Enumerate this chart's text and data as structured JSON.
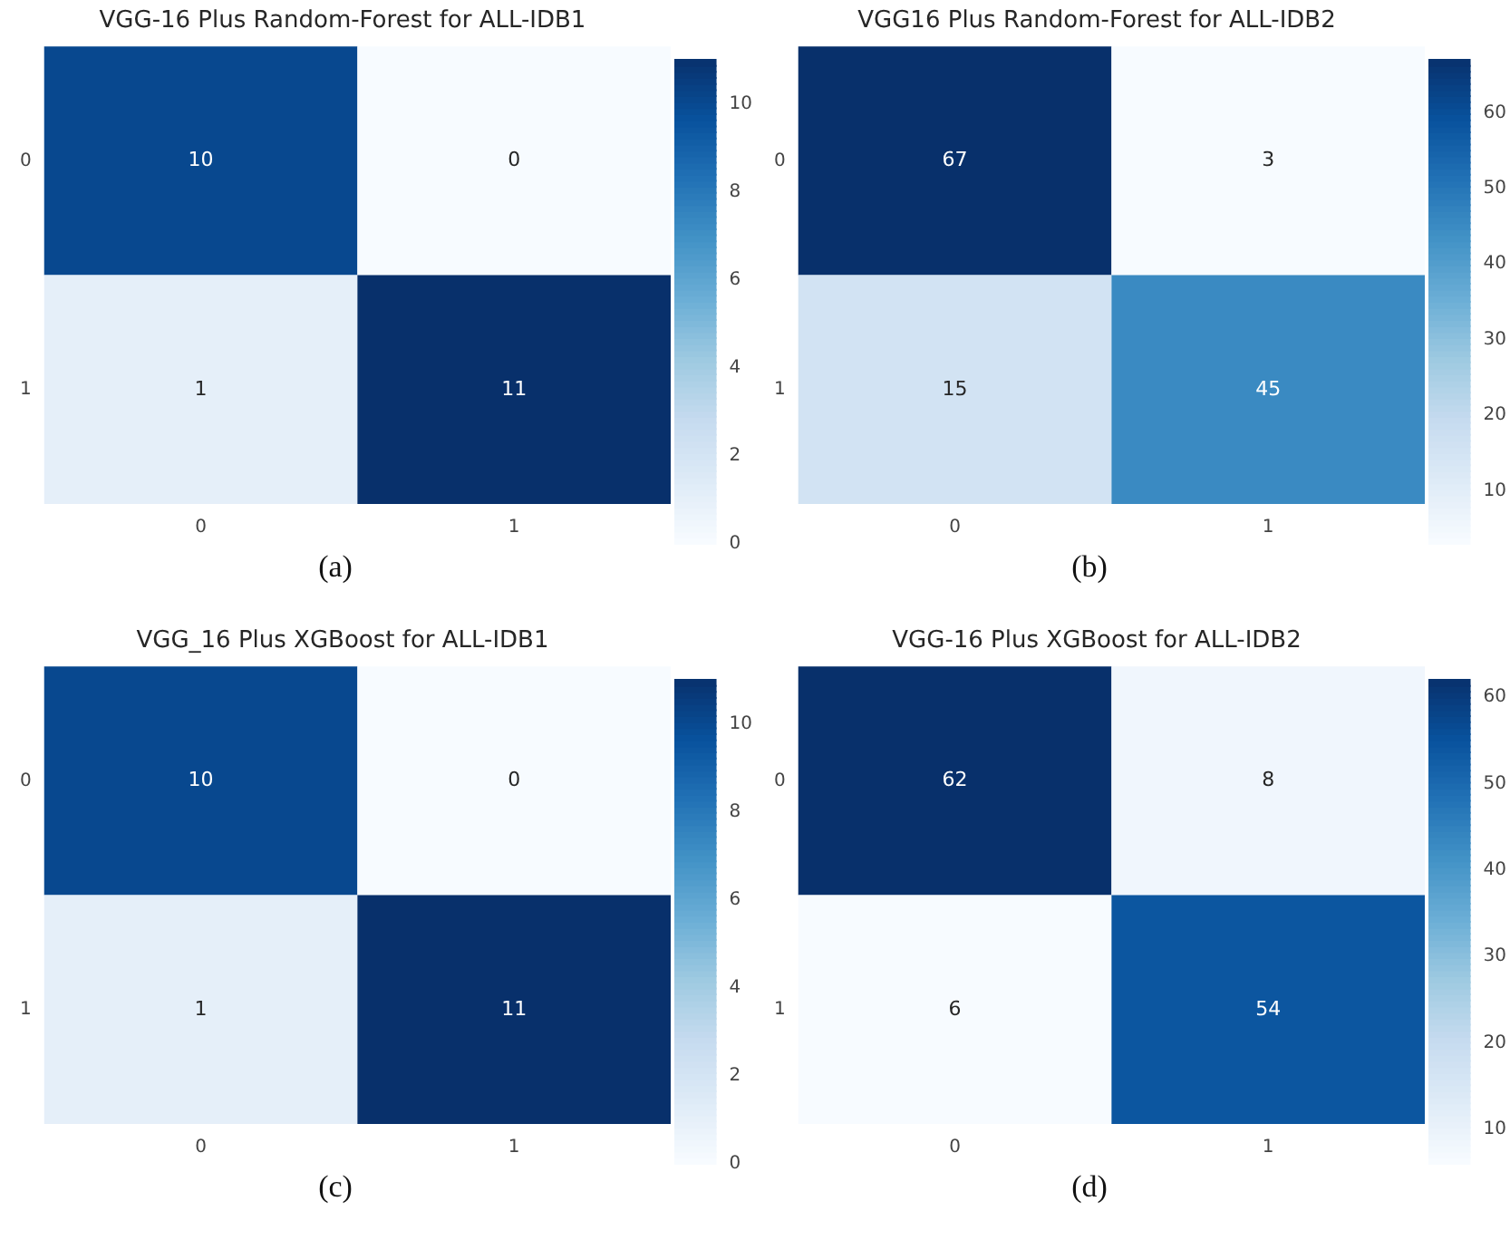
{
  "chart_data": [
    {
      "type": "heatmap",
      "title": "VGG-16 Plus Random-Forest for ALL-IDB1",
      "categories": [
        "0",
        "1"
      ],
      "y_categories": [
        "0",
        "1"
      ],
      "cells": [
        [
          10,
          0
        ],
        [
          1,
          11
        ]
      ],
      "clim": [
        0,
        11
      ],
      "cticks": [
        0,
        2,
        4,
        6,
        8,
        10
      ],
      "data_labels": true,
      "annotations": [
        "(a)"
      ]
    },
    {
      "type": "heatmap",
      "title": "VGG16 Plus Random-Forest for ALL-IDB2",
      "categories": [
        "0",
        "1"
      ],
      "y_categories": [
        "0",
        "1"
      ],
      "cells": [
        [
          67,
          3
        ],
        [
          15,
          45
        ]
      ],
      "clim": [
        3,
        67
      ],
      "cticks": [
        10,
        20,
        30,
        40,
        50,
        60
      ],
      "data_labels": true,
      "annotations": [
        "(b)"
      ]
    },
    {
      "type": "heatmap",
      "title": "VGG_16 Plus XGBoost for ALL-IDB1",
      "categories": [
        "0",
        "1"
      ],
      "y_categories": [
        "0",
        "1"
      ],
      "cells": [
        [
          10,
          0
        ],
        [
          1,
          11
        ]
      ],
      "clim": [
        0,
        11
      ],
      "cticks": [
        0,
        2,
        4,
        6,
        8,
        10
      ],
      "data_labels": true,
      "annotations": [
        "(c)"
      ]
    },
    {
      "type": "heatmap",
      "title": "VGG-16 Plus XGBoost for ALL-IDB2",
      "categories": [
        "0",
        "1"
      ],
      "y_categories": [
        "0",
        "1"
      ],
      "cells": [
        [
          62,
          8
        ],
        [
          6,
          54
        ]
      ],
      "clim": [
        6,
        62
      ],
      "cticks": [
        10,
        20,
        30,
        40,
        50,
        60
      ],
      "data_labels": true,
      "annotations": [
        "(d)"
      ]
    }
  ]
}
